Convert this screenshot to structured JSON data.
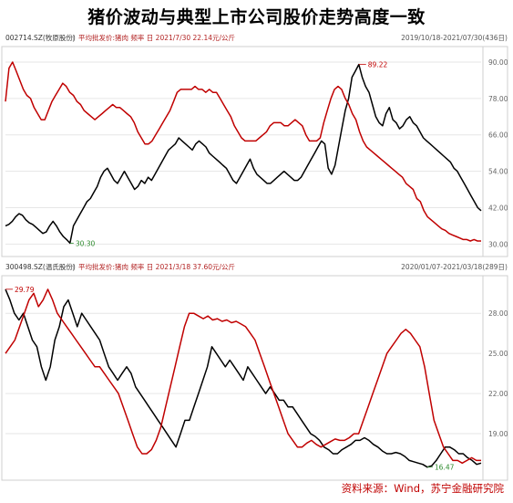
{
  "title": "猪价波动与典型上市公司股价走势高度一致",
  "source": "资料来源：Wind，苏宁金融研究院",
  "chart_data": [
    {
      "type": "line",
      "code_label": "002714.SZ(牧原股份)",
      "price_label": "平均批发价:猪肉 频率 日 2021/7/30 22.14元/公斤",
      "date_range": "2019/10/18-2021/07/30(436日)",
      "yticks": [
        "90.00",
        "78.00",
        "66.00",
        "54.00",
        "42.00",
        "30.00"
      ],
      "ylim": [
        28,
        93
      ],
      "annotations": {
        "max": "89.22",
        "min": "30.30"
      },
      "series": [
        {
          "color": "#000000",
          "values": [
            36,
            36.5,
            37.5,
            39,
            40,
            39.5,
            38,
            37,
            36.5,
            35.5,
            34.5,
            33.5,
            34,
            36,
            37.5,
            36,
            34,
            32.5,
            31.5,
            30.3,
            36,
            38,
            40,
            42,
            44,
            45,
            47,
            49,
            52,
            54,
            55,
            53,
            51,
            50,
            52,
            54,
            52,
            50,
            48,
            49,
            51,
            50,
            52,
            51,
            53,
            55,
            57,
            59,
            61,
            62,
            63,
            65,
            64,
            63,
            62,
            61,
            63,
            64,
            63,
            62,
            60,
            59,
            58,
            57,
            56,
            55,
            53,
            51,
            50,
            52,
            54,
            56,
            58,
            55,
            53,
            52,
            51,
            50,
            50,
            51,
            52,
            53,
            54,
            53,
            52,
            51,
            51,
            52,
            54,
            56,
            58,
            60,
            62,
            64,
            63,
            55,
            53,
            56,
            62,
            68,
            74,
            78,
            85,
            87,
            89.2,
            85,
            82,
            80,
            76,
            72,
            70,
            69,
            73,
            75,
            71,
            70,
            68,
            69,
            71,
            72,
            70,
            69,
            67,
            65,
            64,
            63,
            62,
            61,
            60,
            59,
            58,
            57,
            55,
            54,
            52,
            50,
            48,
            46,
            44,
            42,
            41
          ]
        },
        {
          "color": "#c00000",
          "values": [
            77,
            88,
            90,
            87,
            84,
            81,
            79,
            78,
            75,
            73,
            71,
            71,
            74,
            77,
            79,
            81,
            83,
            82,
            80,
            79,
            77,
            76,
            74,
            73,
            72,
            71,
            72,
            73,
            74,
            75,
            76,
            75,
            75,
            74,
            73,
            72,
            70,
            67,
            65,
            63,
            63,
            64,
            66,
            68,
            70,
            72,
            74,
            77,
            80,
            81,
            81,
            81,
            81,
            82,
            81,
            81,
            80,
            81,
            80,
            80,
            78,
            76,
            74,
            72,
            69,
            67,
            65,
            64,
            64,
            64,
            64,
            65,
            66,
            67,
            69,
            70,
            70,
            70,
            69,
            69,
            70,
            71,
            70,
            69,
            66,
            64,
            64,
            64,
            65,
            70,
            74,
            78,
            81,
            82,
            81,
            78,
            76,
            73,
            71,
            67,
            64,
            62,
            61,
            60,
            59,
            58,
            57,
            56,
            55,
            54,
            53,
            52,
            50,
            49,
            48,
            45,
            44,
            41,
            39,
            38,
            37,
            36,
            35,
            34.5,
            33.5,
            33,
            32.5,
            32,
            31.5,
            31.5,
            31,
            31.5,
            31,
            31
          ]
        }
      ]
    },
    {
      "type": "line",
      "code_label": "300498.SZ(温氏股份)",
      "price_label": "平均批发价:猪肉 频率 日 2021/3/18 37.60元/公斤",
      "date_range": "2020/01/07-2021/03/18(289日)",
      "yticks": [
        "28.00",
        "25.00",
        "22.00",
        "19.00"
      ],
      "ylim": [
        16,
        30.2
      ],
      "annotations": {
        "max": "29.79",
        "min": "16.47"
      },
      "series": [
        {
          "color": "#000000",
          "values": [
            29.8,
            29,
            28,
            27.5,
            28,
            27,
            26,
            25.5,
            24,
            23,
            24,
            26,
            27,
            28.5,
            29,
            28,
            27,
            28,
            27.5,
            27,
            26.5,
            26,
            25,
            24,
            23.5,
            23,
            23.5,
            24,
            23.5,
            22.5,
            22,
            21.5,
            21,
            20.5,
            20,
            19.5,
            19,
            18.5,
            18,
            19,
            20,
            20,
            21,
            22,
            23,
            24,
            25.5,
            25,
            24.5,
            24,
            24.5,
            24,
            23.5,
            23,
            24,
            23.5,
            23,
            22.5,
            22,
            22.5,
            22,
            21.5,
            21.5,
            21,
            21,
            20.5,
            20,
            19.5,
            19,
            18.8,
            18.5,
            18,
            17.8,
            17.5,
            17.5,
            17.8,
            18,
            18.2,
            18.5,
            18.5,
            18.7,
            18.5,
            18.2,
            18,
            17.7,
            17.5,
            17.5,
            17.6,
            17.5,
            17.3,
            17,
            16.9,
            16.8,
            16.7,
            16.5,
            16.6,
            17,
            17.5,
            18,
            18,
            17.8,
            17.5,
            17.5,
            17.2,
            17,
            16.7,
            16.8
          ]
        },
        {
          "color": "#c00000",
          "values": [
            25,
            25.5,
            26,
            27,
            28,
            29,
            29.5,
            28.5,
            29,
            29.8,
            29,
            28,
            27.5,
            27,
            26.5,
            26,
            25.5,
            25,
            24.5,
            24,
            24,
            23.5,
            23,
            22.5,
            22,
            21,
            20,
            19,
            18,
            17.5,
            17.5,
            17.8,
            18.5,
            19.5,
            21,
            22.5,
            24,
            25.5,
            27,
            28,
            28,
            27.8,
            27.6,
            27.8,
            27.5,
            27.6,
            27.4,
            27.5,
            27.3,
            27.4,
            27.2,
            27,
            26.5,
            26,
            25,
            24,
            23,
            22,
            21,
            20,
            19,
            18.5,
            18,
            18,
            18.3,
            18.5,
            18.2,
            18,
            18.2,
            18.4,
            18.6,
            18.5,
            18.5,
            18.7,
            19,
            19,
            20,
            21,
            22,
            23,
            24,
            25,
            25.5,
            26,
            26.5,
            26.8,
            26.5,
            26,
            25.5,
            24,
            22,
            20,
            19,
            18,
            17.5,
            17,
            17,
            16.8,
            17,
            17.2,
            17,
            17
          ]
        }
      ]
    }
  ]
}
